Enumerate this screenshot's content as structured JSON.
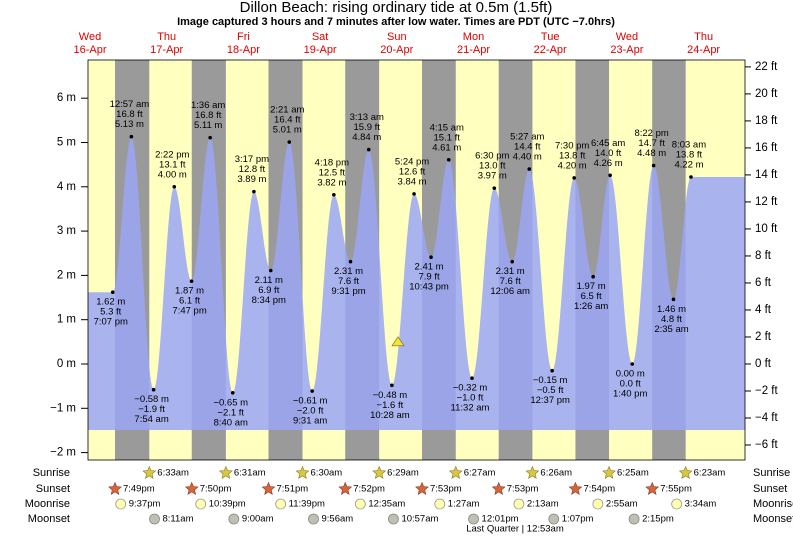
{
  "chart_data": {
    "type": "tide",
    "title": "Dillon Beach: rising  ordinary tide at 0.5m (1.5ft)",
    "subtitle": "Image captured 3 hours and 7 minutes after low water. Times are PDT (UTC −7.0hrs)",
    "ylim": [
      -2.167,
      6.862
    ],
    "yticks": [
      {
        "value": -2,
        "label": "−2 m"
      },
      {
        "value": -1,
        "label": "−1 m"
      },
      {
        "value": 0,
        "label": "0 m"
      },
      {
        "value": 1,
        "label": "1 m"
      },
      {
        "value": 2,
        "label": "2 m"
      },
      {
        "value": 3,
        "label": "3 m"
      },
      {
        "value": 4,
        "label": "4 m"
      },
      {
        "value": 5,
        "label": "5 m"
      },
      {
        "value": 6,
        "label": "6 m"
      }
    ],
    "y2lim": [
      -7.11,
      22.51
    ],
    "y2ticks": [
      {
        "value": -6,
        "label": "−6 ft"
      },
      {
        "value": -4,
        "label": "−4 ft"
      },
      {
        "value": -2,
        "label": "−2 ft"
      },
      {
        "value": 0,
        "label": "0 ft"
      },
      {
        "value": 2,
        "label": "2 ft"
      },
      {
        "value": 4,
        "label": "4 ft"
      },
      {
        "value": 6,
        "label": "6 ft"
      },
      {
        "value": 8,
        "label": "8 ft"
      },
      {
        "value": 10,
        "label": "10 ft"
      },
      {
        "value": 12,
        "label": "12 ft"
      },
      {
        "value": 14,
        "label": "14 ft"
      },
      {
        "value": 16,
        "label": "16 ft"
      },
      {
        "value": 18,
        "label": "18 ft"
      },
      {
        "value": 20,
        "label": "20 ft"
      },
      {
        "value": 22,
        "label": "22 ft"
      }
    ],
    "current_level": 0.5,
    "row_labels": {
      "sunrise": "Sunrise",
      "sunset": "Sunset",
      "moonrise": "Moonrise",
      "moonset": "Moonset"
    },
    "moon_phase": "Last Quarter | 12:53am",
    "days": [
      {
        "weekday": "Wed",
        "date": "16-Apr",
        "sunrise": null,
        "sunset": "7:49pm",
        "moonrise": "9:37pm",
        "moonset": null,
        "events": [
          {
            "time": "7:07 pm",
            "m": 1.62,
            "m_label": "1.62 m",
            "ft_label": "5.3 ft"
          }
        ]
      },
      {
        "weekday": "Thu",
        "date": "17-Apr",
        "sunrise": "6:33am",
        "sunset": "7:50pm",
        "moonrise": "10:39pm",
        "moonset": "8:11am",
        "events": [
          {
            "time": "12:57 am",
            "m": 5.13,
            "m_label": "5.13 m",
            "ft_label": "16.8 ft"
          },
          {
            "time": "7:54 am",
            "m": -0.58,
            "m_label": "−0.58 m",
            "ft_label": "−1.9 ft"
          },
          {
            "time": "2:22 pm",
            "m": 4.0,
            "m_label": "4.00 m",
            "ft_label": "13.1 ft"
          },
          {
            "time": "7:47 pm",
            "m": 1.87,
            "m_label": "1.87 m",
            "ft_label": "6.1 ft"
          }
        ]
      },
      {
        "weekday": "Fri",
        "date": "18-Apr",
        "sunrise": "6:31am",
        "sunset": "7:51pm",
        "moonrise": "11:39pm",
        "moonset": "9:00am",
        "events": [
          {
            "time": "1:36 am",
            "m": 5.11,
            "m_label": "5.11 m",
            "ft_label": "16.8 ft"
          },
          {
            "time": "8:40 am",
            "m": -0.65,
            "m_label": "−0.65 m",
            "ft_label": "−2.1 ft"
          },
          {
            "time": "3:17 pm",
            "m": 3.89,
            "m_label": "3.89 m",
            "ft_label": "12.8 ft"
          },
          {
            "time": "8:34 pm",
            "m": 2.11,
            "m_label": "2.11 m",
            "ft_label": "6.9 ft"
          }
        ]
      },
      {
        "weekday": "Sat",
        "date": "19-Apr",
        "sunrise": "6:30am",
        "sunset": "7:52pm",
        "moonrise": null,
        "moonset": "9:56am",
        "events": [
          {
            "time": "2:21 am",
            "m": 5.01,
            "m_label": "5.01 m",
            "ft_label": "16.4 ft"
          },
          {
            "time": "9:31 am",
            "m": -0.61,
            "m_label": "−0.61 m",
            "ft_label": "−2.0 ft"
          },
          {
            "time": "4:18 pm",
            "m": 3.82,
            "m_label": "3.82 m",
            "ft_label": "12.5 ft"
          },
          {
            "time": "9:31 pm",
            "m": 2.31,
            "m_label": "2.31 m",
            "ft_label": "7.6 ft"
          }
        ]
      },
      {
        "weekday": "Sun",
        "date": "20-Apr",
        "sunrise": "6:29am",
        "sunset": "7:53pm",
        "moonrise": "12:35am",
        "moonset": "10:57am",
        "events": [
          {
            "time": "3:13 am",
            "m": 4.84,
            "m_label": "4.84 m",
            "ft_label": "15.9 ft"
          },
          {
            "time": "10:28 am",
            "m": -0.48,
            "m_label": "−0.48 m",
            "ft_label": "−1.6 ft"
          },
          {
            "time": "5:24 pm",
            "m": 3.84,
            "m_label": "3.84 m",
            "ft_label": "12.6 ft"
          },
          {
            "time": "10:43 pm",
            "m": 2.41,
            "m_label": "2.41 m",
            "ft_label": "7.9 ft"
          }
        ]
      },
      {
        "weekday": "Mon",
        "date": "21-Apr",
        "sunrise": "6:27am",
        "sunset": "7:53pm",
        "moonrise": "1:27am",
        "moonset": "12:01pm",
        "events": [
          {
            "time": "4:15 am",
            "m": 4.61,
            "m_label": "4.61 m",
            "ft_label": "15.1 ft"
          },
          {
            "time": "11:32 am",
            "m": -0.32,
            "m_label": "−0.32 m",
            "ft_label": "−1.0 ft"
          },
          {
            "time": "6:30 pm",
            "m": 3.97,
            "m_label": "3.97 m",
            "ft_label": "13.0 ft"
          }
        ]
      },
      {
        "weekday": "Tue",
        "date": "22-Apr",
        "sunrise": "6:26am",
        "sunset": "7:54pm",
        "moonrise": "2:13am",
        "moonset": "1:07pm",
        "events": [
          {
            "time": "12:06 am",
            "m": 2.31,
            "m_label": "2.31 m",
            "ft_label": "7.6 ft"
          },
          {
            "time": "5:27 am",
            "m": 4.4,
            "m_label": "4.40 m",
            "ft_label": "14.4 ft"
          },
          {
            "time": "12:37 pm",
            "m": -0.15,
            "m_label": "−0.15 m",
            "ft_label": "−0.5 ft"
          },
          {
            "time": "7:30 pm",
            "m": 4.2,
            "m_label": "4.20 m",
            "ft_label": "13.8 ft"
          }
        ]
      },
      {
        "weekday": "Wed",
        "date": "23-Apr",
        "sunrise": "6:25am",
        "sunset": "7:55pm",
        "moonrise": "2:55am",
        "moonset": "2:15pm",
        "events": [
          {
            "time": "1:26 am",
            "m": 1.97,
            "m_label": "1.97 m",
            "ft_label": "6.5 ft"
          },
          {
            "time": "6:45 am",
            "m": 4.26,
            "m_label": "4.26 m",
            "ft_label": "14.0 ft"
          },
          {
            "time": "1:40 pm",
            "m": 0.0,
            "m_label": "0.00 m",
            "ft_label": "0.0 ft"
          },
          {
            "time": "8:22 pm",
            "m": 4.48,
            "m_label": "4.48 m",
            "ft_label": "14.7 ft"
          }
        ]
      },
      {
        "weekday": "Thu",
        "date": "24-Apr",
        "sunrise": "6:23am",
        "sunset": null,
        "moonrise": "3:34am",
        "moonset": null,
        "events": [
          {
            "time": "2:35 am",
            "m": 1.46,
            "m_label": "1.46 m",
            "ft_label": "4.8 ft"
          },
          {
            "time": "8:03 am",
            "m": 4.22,
            "m_label": "4.22 m",
            "ft_label": "13.8 ft"
          }
        ]
      }
    ]
  }
}
